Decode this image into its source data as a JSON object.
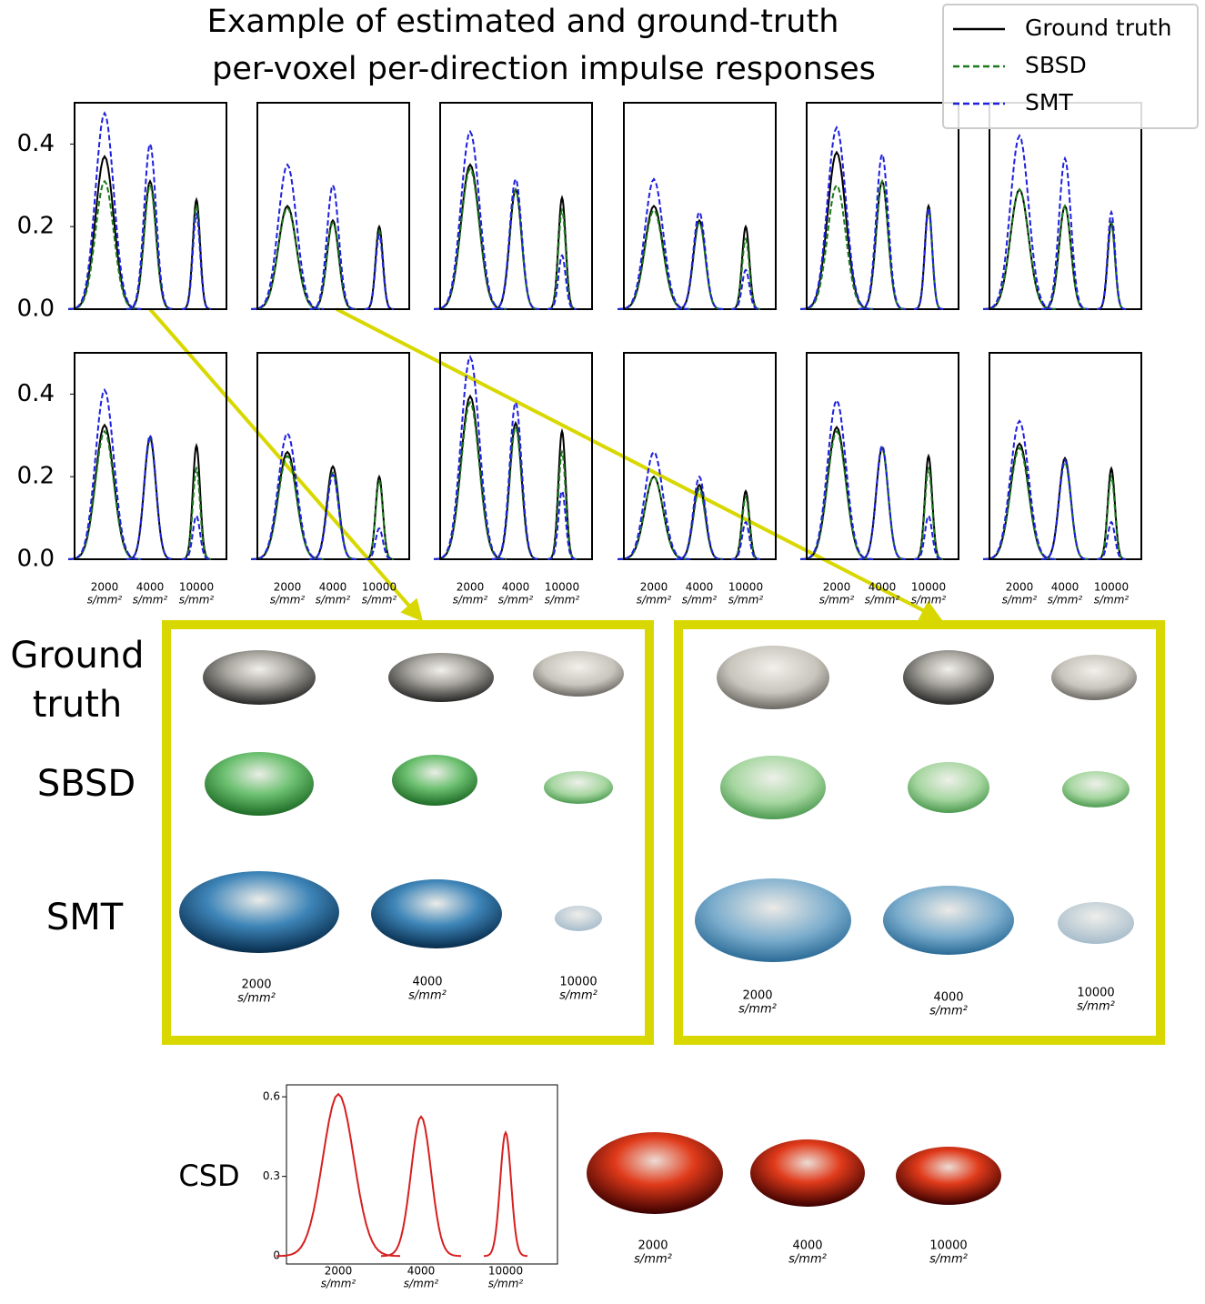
{
  "chart_data": [
    {
      "type": "line",
      "title": [
        "Example of estimated and ground-truth",
        "per-voxel per-direction impulse responses"
      ],
      "legend": "upper right",
      "series": [
        {
          "name": "Ground truth",
          "color": "#000000",
          "linestyle": "solid",
          "values": [
            0.37,
            0.31,
            0.265
          ]
        },
        {
          "name": "SBSD",
          "color": "#1a7a1a",
          "linestyle": "dashed",
          "values": [
            0.31,
            0.3,
            0.25
          ]
        },
        {
          "name": "SMT",
          "color": "#1f1fe0",
          "linestyle": "dashed",
          "values": [
            0.475,
            0.4,
            0.23
          ]
        }
      ],
      "ylim": [
        0,
        0.5
      ],
      "yticks": [
        {
          "value": 0,
          "label": "0.0"
        },
        {
          "value": 0.2,
          "label": "0.2"
        },
        {
          "value": 0.4,
          "label": "0.4"
        }
      ]
    },
    {
      "type": "line",
      "series": [
        {
          "color": "#000000",
          "linestyle": "solid",
          "values": [
            0.25,
            0.215,
            0.2
          ]
        },
        {
          "color": "#1a7a1a",
          "linestyle": "dashed",
          "values": [
            0.245,
            0.21,
            0.19
          ]
        },
        {
          "color": "#1f1fe0",
          "linestyle": "dashed",
          "values": [
            0.35,
            0.3,
            0.18
          ]
        }
      ],
      "ylim": [
        0,
        0.5
      ]
    },
    {
      "type": "line",
      "series": [
        {
          "color": "#000000",
          "linestyle": "solid",
          "values": [
            0.35,
            0.29,
            0.27
          ]
        },
        {
          "color": "#1a7a1a",
          "linestyle": "dashed",
          "values": [
            0.34,
            0.29,
            0.24
          ]
        },
        {
          "color": "#1f1fe0",
          "linestyle": "dashed",
          "values": [
            0.43,
            0.315,
            0.13
          ]
        }
      ],
      "ylim": [
        0,
        0.5
      ]
    },
    {
      "type": "line",
      "series": [
        {
          "color": "#000000",
          "linestyle": "solid",
          "values": [
            0.25,
            0.215,
            0.2
          ]
        },
        {
          "color": "#1a7a1a",
          "linestyle": "dashed",
          "values": [
            0.24,
            0.21,
            0.17
          ]
        },
        {
          "color": "#1f1fe0",
          "linestyle": "dashed",
          "values": [
            0.315,
            0.235,
            0.095
          ]
        }
      ],
      "ylim": [
        0,
        0.5
      ]
    },
    {
      "type": "line",
      "series": [
        {
          "color": "#000000",
          "linestyle": "solid",
          "values": [
            0.38,
            0.31,
            0.25
          ]
        },
        {
          "color": "#1a7a1a",
          "linestyle": "dashed",
          "values": [
            0.3,
            0.31,
            0.24
          ]
        },
        {
          "color": "#1f1fe0",
          "linestyle": "dashed",
          "values": [
            0.44,
            0.375,
            0.245
          ]
        }
      ],
      "ylim": [
        0,
        0.5
      ]
    },
    {
      "type": "line",
      "series": [
        {
          "color": "#000000",
          "linestyle": "solid",
          "values": [
            0.29,
            0.25,
            0.21
          ]
        },
        {
          "color": "#1a7a1a",
          "linestyle": "dashed",
          "values": [
            0.29,
            0.25,
            0.21
          ]
        },
        {
          "color": "#1f1fe0",
          "linestyle": "dashed",
          "values": [
            0.42,
            0.365,
            0.235
          ]
        }
      ],
      "ylim": [
        0,
        0.5
      ]
    },
    {
      "type": "line",
      "categories": [
        "2000",
        "4000",
        "10000"
      ],
      "x_unit": "s/mm²",
      "series": [
        {
          "color": "#000000",
          "linestyle": "solid",
          "values": [
            0.325,
            0.295,
            0.275
          ]
        },
        {
          "color": "#1a7a1a",
          "linestyle": "dashed",
          "values": [
            0.31,
            0.29,
            0.22
          ]
        },
        {
          "color": "#1f1fe0",
          "linestyle": "dashed",
          "values": [
            0.41,
            0.3,
            0.105
          ]
        }
      ],
      "ylim": [
        0,
        0.5
      ],
      "yticks": [
        {
          "value": 0,
          "label": "0.0"
        },
        {
          "value": 0.2,
          "label": "0.2"
        },
        {
          "value": 0.4,
          "label": "0.4"
        }
      ]
    },
    {
      "type": "line",
      "categories": [
        "2000",
        "4000",
        "10000"
      ],
      "x_unit": "s/mm²",
      "series": [
        {
          "color": "#000000",
          "linestyle": "solid",
          "values": [
            0.26,
            0.225,
            0.2
          ]
        },
        {
          "color": "#1a7a1a",
          "linestyle": "dashed",
          "values": [
            0.25,
            0.21,
            0.19
          ]
        },
        {
          "color": "#1f1fe0",
          "linestyle": "dashed",
          "values": [
            0.305,
            0.205,
            0.075
          ]
        }
      ],
      "ylim": [
        0,
        0.5
      ]
    },
    {
      "type": "line",
      "categories": [
        "2000",
        "4000",
        "10000"
      ],
      "x_unit": "s/mm²",
      "series": [
        {
          "color": "#000000",
          "linestyle": "solid",
          "values": [
            0.395,
            0.33,
            0.31
          ]
        },
        {
          "color": "#1a7a1a",
          "linestyle": "dashed",
          "values": [
            0.38,
            0.32,
            0.26
          ]
        },
        {
          "color": "#1f1fe0",
          "linestyle": "dashed",
          "values": [
            0.49,
            0.38,
            0.165
          ]
        }
      ],
      "ylim": [
        0,
        0.5
      ]
    },
    {
      "type": "line",
      "categories": [
        "2000",
        "4000",
        "10000"
      ],
      "x_unit": "s/mm²",
      "series": [
        {
          "color": "#000000",
          "linestyle": "solid",
          "values": [
            0.2,
            0.18,
            0.165
          ]
        },
        {
          "color": "#1a7a1a",
          "linestyle": "dashed",
          "values": [
            0.2,
            0.17,
            0.15
          ]
        },
        {
          "color": "#1f1fe0",
          "linestyle": "dashed",
          "values": [
            0.26,
            0.2,
            0.09
          ]
        }
      ],
      "ylim": [
        0,
        0.5
      ]
    },
    {
      "type": "line",
      "categories": [
        "2000",
        "4000",
        "10000"
      ],
      "x_unit": "s/mm²",
      "series": [
        {
          "color": "#000000",
          "linestyle": "solid",
          "values": [
            0.32,
            0.27,
            0.25
          ]
        },
        {
          "color": "#1a7a1a",
          "linestyle": "dashed",
          "values": [
            0.31,
            0.27,
            0.22
          ]
        },
        {
          "color": "#1f1fe0",
          "linestyle": "dashed",
          "values": [
            0.385,
            0.275,
            0.105
          ]
        }
      ],
      "ylim": [
        0,
        0.5
      ]
    },
    {
      "type": "line",
      "categories": [
        "2000",
        "4000",
        "10000"
      ],
      "x_unit": "s/mm²",
      "series": [
        {
          "color": "#000000",
          "linestyle": "solid",
          "values": [
            0.28,
            0.245,
            0.22
          ]
        },
        {
          "color": "#1a7a1a",
          "linestyle": "dashed",
          "values": [
            0.27,
            0.235,
            0.2
          ]
        },
        {
          "color": "#1f1fe0",
          "linestyle": "dashed",
          "values": [
            0.335,
            0.24,
            0.09
          ]
        }
      ],
      "ylim": [
        0,
        0.5
      ]
    },
    {
      "type": "line",
      "categories": [
        "2000",
        "4000",
        "10000"
      ],
      "x_unit": "s/mm²",
      "series": [
        {
          "name": "CSD",
          "color": "#d62020",
          "linestyle": "solid",
          "values": [
            0.61,
            0.525,
            0.465
          ]
        }
      ],
      "ylim": [
        -0.03,
        0.645
      ],
      "yticks": [
        0,
        0.3,
        0.6
      ]
    }
  ]
}
